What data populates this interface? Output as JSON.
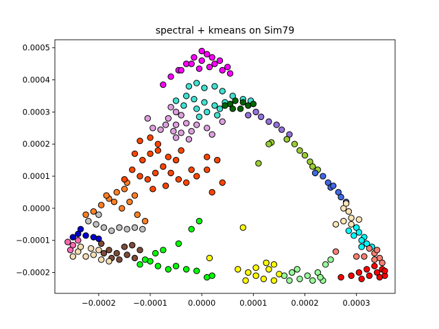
{
  "chart_data": {
    "type": "scatter",
    "title": "spectral + kmeans on Sim79",
    "xlabel": "",
    "ylabel": "",
    "xlim": [
      -0.000285,
      0.000375
    ],
    "ylim": [
      -0.000265,
      0.000525
    ],
    "x_ticks": [
      -0.0002,
      -0.0001,
      0.0,
      0.0001,
      0.0002,
      0.0003
    ],
    "x_tick_labels": [
      "−0.0002",
      "−0.0001",
      "0.0000",
      "0.0001",
      "0.0002",
      "0.0003"
    ],
    "y_ticks": [
      -0.0002,
      -0.0001,
      0.0,
      0.0001,
      0.0002,
      0.0003,
      0.0004,
      0.0005
    ],
    "y_tick_labels": [
      "−0.0002",
      "−0.0001",
      "0.0000",
      "0.0001",
      "0.0002",
      "0.0003",
      "0.0004",
      "0.0005"
    ],
    "grid": false,
    "legend": "none",
    "marker_edge_color": "#000000",
    "series": [
      {
        "color": "#ff00ff",
        "points": [
          [
            -7.5e-05,
            0.000385
          ],
          [
            -6e-05,
            0.00041
          ],
          [
            -4.5e-05,
            0.00043
          ],
          [
            -3e-05,
            0.00045
          ],
          [
            -1.5e-05,
            0.00047
          ],
          [
            0.0,
            0.00049
          ],
          [
            1e-05,
            0.00048
          ],
          [
            2e-05,
            0.00047
          ],
          [
            3.5e-05,
            0.00046
          ],
          [
            5e-05,
            0.00044
          ],
          [
            5.5e-05,
            0.00042
          ],
          [
            2.5e-05,
            0.00045
          ],
          [
            -2e-05,
            0.00045
          ],
          [
            -4e-05,
            0.00043
          ],
          [
            0.0,
            0.00046
          ],
          [
            1.5e-05,
            0.00044
          ],
          [
            -5e-06,
            0.000435
          ],
          [
            4e-05,
            0.00043
          ]
        ]
      },
      {
        "color": "#40e0d0",
        "points": [
          [
            -2.5e-05,
            0.00038
          ],
          [
            -1e-05,
            0.00039
          ],
          [
            5e-06,
            0.000375
          ],
          [
            2.5e-05,
            0.00038
          ],
          [
            4e-05,
            0.000365
          ],
          [
            6e-05,
            0.00035
          ],
          [
            8e-05,
            0.00034
          ],
          [
            9.5e-05,
            0.000335
          ],
          [
            -3e-05,
            0.00035
          ],
          [
            -1.5e-05,
            0.00034
          ],
          [
            5e-06,
            0.00033
          ],
          [
            2.5e-05,
            0.00032
          ],
          [
            4.5e-05,
            0.00033
          ],
          [
            -3.5e-05,
            0.00032
          ],
          [
            -1e-05,
            0.00031
          ],
          [
            1e-05,
            0.0003
          ],
          [
            3.5e-05,
            0.00031
          ],
          [
            -5e-05,
            0.000335
          ],
          [
            3e-05,
            0.00029
          ],
          [
            -5e-06,
            0.000285
          ]
        ]
      },
      {
        "color": "#006400",
        "points": [
          [
            5.5e-05,
            0.000325
          ],
          [
            6.5e-05,
            0.000335
          ],
          [
            8e-05,
            0.00033
          ],
          [
            9e-05,
            0.00032
          ],
          [
            7.5e-05,
            0.00031
          ],
          [
            6e-05,
            0.00031
          ],
          [
            4.5e-05,
            0.00032
          ],
          [
            0.0001,
            0.000325
          ]
        ]
      },
      {
        "color": "#dda0dd",
        "points": [
          [
            -6e-05,
            0.000315
          ],
          [
            -5e-05,
            0.0003
          ],
          [
            -4e-05,
            0.00029
          ],
          [
            -6.5e-05,
            0.00028
          ],
          [
            -5e-05,
            0.00026
          ],
          [
            -3e-05,
            0.000265
          ],
          [
            -1e-05,
            0.00026
          ],
          [
            1e-05,
            0.00025
          ],
          [
            -5.5e-05,
            0.00024
          ],
          [
            -4e-05,
            0.000235
          ],
          [
            -2e-05,
            0.00024
          ],
          [
            -7e-05,
            0.00026
          ],
          [
            -8e-05,
            0.000245
          ],
          [
            -9.5e-05,
            0.00025
          ],
          [
            2e-05,
            0.00023
          ],
          [
            -2.5e-05,
            0.000215
          ],
          [
            -5e-05,
            0.00022
          ],
          [
            4e-05,
            0.00027
          ],
          [
            -0.000105,
            0.00028
          ]
        ]
      },
      {
        "color": "#9370db",
        "points": [
          [
            0.000115,
            0.000285
          ],
          [
            0.00013,
            0.00027
          ],
          [
            0.000145,
            0.00026
          ],
          [
            0.000155,
            0.000245
          ],
          [
            0.00017,
            0.00023
          ],
          [
            0.000105,
            0.0003
          ],
          [
            9e-05,
            0.00029
          ],
          [
            0.000165,
            0.000215
          ]
        ]
      },
      {
        "color": "#9acd32",
        "points": [
          [
            0.000135,
            0.000205
          ],
          [
            0.000165,
            0.000215
          ],
          [
            0.00018,
            0.0002
          ],
          [
            0.00019,
            0.00018
          ],
          [
            0.0002,
            0.000165
          ],
          [
            0.00021,
            0.000145
          ],
          [
            0.000215,
            0.00013
          ],
          [
            0.000225,
            0.00012
          ],
          [
            0.00011,
            0.00014
          ],
          [
            0.00013,
            0.0002
          ]
        ]
      },
      {
        "color": "#4169e1",
        "points": [
          [
            0.00022,
            0.00011
          ],
          [
            0.000235,
            0.0001
          ],
          [
            0.000245,
            8e-05
          ],
          [
            0.00025,
            6.5e-05
          ],
          [
            0.000265,
            5e-05
          ],
          [
            0.00027,
            3.5e-05
          ],
          [
            0.000255,
            7e-05
          ],
          [
            0.00028,
            2e-05
          ]
        ]
      },
      {
        "color": "#ffe4b5",
        "points": [
          [
            0.000275,
            0.0
          ],
          [
            0.000285,
            -1e-05
          ],
          [
            0.00029,
            -3e-05
          ],
          [
            0.000275,
            -4e-05
          ],
          [
            0.00026,
            -5e-05
          ],
          [
            0.00029,
            -5e-05
          ],
          [
            0.000305,
            -3.5e-05
          ],
          [
            0.00028,
            1.5e-05
          ]
        ]
      },
      {
        "color": "#00ffff",
        "points": [
          [
            0.0003,
            -6e-05
          ],
          [
            0.000305,
            -7.5e-05
          ],
          [
            0.000315,
            -9e-05
          ],
          [
            0.00032,
            -0.00011
          ],
          [
            0.00031,
            -0.0001
          ],
          [
            0.000295,
            -8.5e-05
          ],
          [
            0.00033,
            -0.00012
          ],
          [
            0.00031,
            -0.00012
          ],
          [
            0.000285,
            -7e-05
          ]
        ]
      },
      {
        "color": "#fa8072",
        "points": [
          [
            0.000325,
            -0.000125
          ],
          [
            0.000335,
            -0.00014
          ],
          [
            0.000345,
            -0.000155
          ],
          [
            0.00035,
            -0.00017
          ],
          [
            0.000335,
            -0.00016
          ],
          [
            0.000315,
            -0.00015
          ],
          [
            0.00034,
            -0.00013
          ],
          [
            0.00026,
            -0.000135
          ],
          [
            0.0003,
            -0.00015
          ]
        ]
      },
      {
        "color": "#ff0000",
        "points": [
          [
            0.00029,
            -0.00021
          ],
          [
            0.000305,
            -0.0002
          ],
          [
            0.00032,
            -0.00019
          ],
          [
            0.000335,
            -0.00018
          ],
          [
            0.00035,
            -0.00019
          ],
          [
            0.000355,
            -0.00021
          ],
          [
            0.00034,
            -0.0002
          ],
          [
            0.000325,
            -0.00021
          ],
          [
            0.00031,
            -0.00022
          ],
          [
            0.000345,
            -0.000215
          ],
          [
            0.00027,
            -0.000215
          ],
          [
            0.000355,
            -0.000195
          ]
        ]
      },
      {
        "color": "#98fb98",
        "points": [
          [
            0.00016,
            -0.00021
          ],
          [
            0.000175,
            -0.0002
          ],
          [
            0.000185,
            -0.00019
          ],
          [
            0.00017,
            -0.000225
          ],
          [
            0.00019,
            -0.00022
          ],
          [
            0.000205,
            -0.00021
          ],
          [
            0.000215,
            -0.000225
          ],
          [
            0.000235,
            -0.000225
          ],
          [
            0.00025,
            -0.00016
          ],
          [
            0.00024,
            -0.000175
          ],
          [
            0.000225,
            -0.0002
          ],
          [
            0.00023,
            -0.000215
          ]
        ]
      },
      {
        "color": "#ffff00",
        "points": [
          [
            7e-05,
            -0.00019
          ],
          [
            9e-05,
            -0.0002
          ],
          [
            0.000105,
            -0.00021
          ],
          [
            0.00012,
            -0.00022
          ],
          [
            0.00013,
            -0.00019
          ],
          [
            0.00014,
            -0.000175
          ],
          [
            0.000105,
            -0.000185
          ],
          [
            0.00015,
            -0.000205
          ],
          [
            8.5e-05,
            -0.000225
          ],
          [
            0.00014,
            -0.000225
          ],
          [
            8e-05,
            -6e-05
          ],
          [
            1.5e-05,
            -0.000155
          ],
          [
            0.000125,
            -0.00017
          ]
        ]
      },
      {
        "color": "#00ff00",
        "points": [
          [
            -0.00012,
            -0.000175
          ],
          [
            -0.0001,
            -0.000165
          ],
          [
            -8.5e-05,
            -0.00018
          ],
          [
            -6.5e-05,
            -0.00019
          ],
          [
            -5e-05,
            -0.00018
          ],
          [
            -3e-05,
            -0.00019
          ],
          [
            -1e-05,
            -0.000195
          ],
          [
            1e-05,
            -0.000215
          ],
          [
            -7.5e-05,
            -0.00013
          ],
          [
            -9e-05,
            -0.00014
          ],
          [
            -4.5e-05,
            -0.00011
          ],
          [
            -2e-05,
            -6.5e-05
          ],
          [
            -5e-06,
            -4e-05
          ],
          [
            2e-05,
            -0.00021
          ],
          [
            -0.00011,
            -0.00016
          ]
        ]
      },
      {
        "color": "#7b4b3a",
        "points": [
          [
            -0.000195,
            -0.00011
          ],
          [
            -0.00018,
            -0.00013
          ],
          [
            -0.000165,
            -0.00014
          ],
          [
            -0.00015,
            -0.00012
          ],
          [
            -0.000135,
            -0.000115
          ],
          [
            -0.00012,
            -0.00013
          ],
          [
            -0.00016,
            -0.00016
          ],
          [
            -0.000145,
            -0.000145
          ],
          [
            -0.00013,
            -0.000155
          ],
          [
            -0.000175,
            -0.000155
          ],
          [
            -0.00019,
            -0.00014
          ]
        ]
      },
      {
        "color": "#f5deb3",
        "points": [
          [
            -0.00024,
            -0.000135
          ],
          [
            -0.000225,
            -0.00015
          ],
          [
            -0.00021,
            -0.000145
          ],
          [
            -0.000195,
            -0.00016
          ],
          [
            -0.00018,
            -0.000165
          ],
          [
            -0.00025,
            -0.00015
          ],
          [
            -0.000215,
            -0.000125
          ],
          [
            -0.0002,
            -0.00013
          ],
          [
            -0.000235,
            -0.00012
          ]
        ]
      },
      {
        "color": "#ff69b4",
        "points": [
          [
            -0.00026,
            -0.000105
          ],
          [
            -0.00025,
            -0.000115
          ],
          [
            -0.00024,
            -0.0001
          ],
          [
            -0.000255,
            -0.00013
          ]
        ]
      },
      {
        "color": "#0000cd",
        "points": [
          [
            -0.00025,
            -9e-05
          ],
          [
            -0.00024,
            -8e-05
          ],
          [
            -0.000225,
            -8.5e-05
          ],
          [
            -0.00021,
            -9e-05
          ],
          [
            -0.0002,
            -9.5e-05
          ],
          [
            -0.000235,
            -6.5e-05
          ]
        ]
      },
      {
        "color": "#c0c0c0",
        "points": [
          [
            -0.00022,
            -4e-05
          ],
          [
            -0.000205,
            -5e-05
          ],
          [
            -0.00019,
            -6e-05
          ],
          [
            -0.000175,
            -7e-05
          ],
          [
            -0.00016,
            -6e-05
          ],
          [
            -0.000145,
            -6.5e-05
          ],
          [
            -0.00013,
            -6e-05
          ],
          [
            -0.000115,
            -6.5e-05
          ],
          [
            -0.0002,
            -2e-05
          ]
        ]
      },
      {
        "color": "#ff7f24",
        "points": [
          [
            -0.00021,
            -1e-05
          ],
          [
            -0.000195,
            1e-05
          ],
          [
            -0.00018,
            3e-05
          ],
          [
            -0.000165,
            5e-05
          ],
          [
            -0.00015,
            6e-05
          ],
          [
            -0.000185,
            4e-05
          ],
          [
            -0.00017,
            2e-05
          ],
          [
            -0.000155,
            0.0
          ],
          [
            -0.00014,
            2e-05
          ],
          [
            -0.000125,
            -2e-05
          ],
          [
            -0.00011,
            -4e-05
          ],
          [
            -0.000225,
            -2e-05
          ],
          [
            -0.00013,
            4e-05
          ],
          [
            -0.000145,
            8e-05
          ]
        ]
      },
      {
        "color": "#ff4500",
        "points": [
          [
            -0.000135,
            0.00012
          ],
          [
            -0.00012,
            0.0001
          ],
          [
            -0.000105,
            9e-05
          ],
          [
            -9e-05,
            0.00011
          ],
          [
            -7.5e-05,
            0.00013
          ],
          [
            -6e-05,
            0.00011
          ],
          [
            -4.5e-05,
            9e-05
          ],
          [
            -3e-05,
            8e-05
          ],
          [
            -1e-05,
            0.0001
          ],
          [
            1e-05,
            0.00012
          ],
          [
            -0.000115,
            0.00015
          ],
          [
            -0.0001,
            0.00017
          ],
          [
            -8.5e-05,
            0.00018
          ],
          [
            -6.5e-05,
            0.00016
          ],
          [
            -5e-05,
            0.00015
          ],
          [
            -0.00012,
            0.00021
          ],
          [
            -0.0001,
            0.00022
          ],
          [
            -8.5e-05,
            0.0002
          ],
          [
            -0.00013,
            0.00017
          ],
          [
            -0.00015,
            9e-05
          ],
          [
            3e-05,
            0.00015
          ],
          [
            1e-05,
            0.00016
          ],
          [
            -2e-05,
            0.00012
          ],
          [
            4e-05,
            8e-05
          ],
          [
            2e-05,
            5e-05
          ],
          [
            -7e-05,
            7e-05
          ],
          [
            -4e-05,
            0.00018
          ],
          [
            -9.5e-05,
            6e-05
          ]
        ]
      }
    ]
  }
}
